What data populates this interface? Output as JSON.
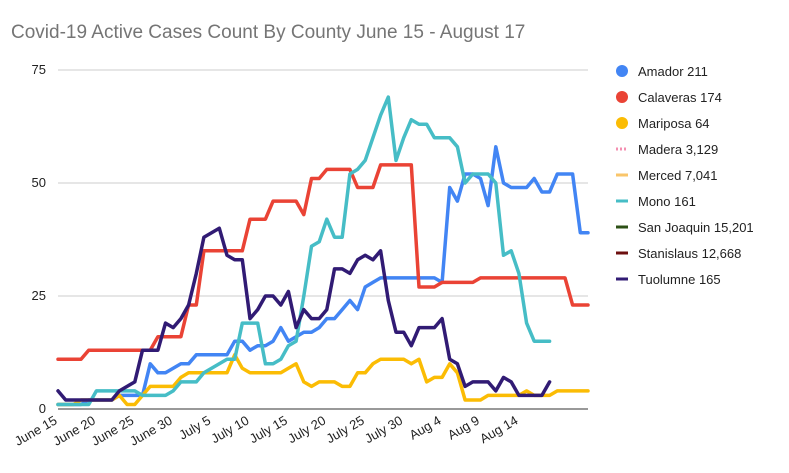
{
  "chart_data": {
    "type": "line",
    "title": "Covid-19 Active Cases Count By County June 15 - August 17",
    "xlabel": "",
    "ylabel": "",
    "ylim": [
      0,
      75
    ],
    "yticks": [
      0,
      25,
      50,
      75
    ],
    "x_tick_labels": [
      "June 15",
      "June 20",
      "June 25",
      "June 30",
      "July 5",
      "July 10",
      "July 15",
      "July 20",
      "July 25",
      "July 30",
      "Aug 4",
      "Aug 9",
      "Aug 14"
    ],
    "grid": "horizontal",
    "legend_position": "right",
    "series": [
      {
        "name": "Amador 211",
        "color": "#4285f4",
        "dash": "solid",
        "values": [
          1,
          1,
          1,
          1,
          2,
          2,
          2,
          2,
          3,
          3,
          3,
          3,
          10,
          8,
          8,
          9,
          10,
          10,
          12,
          12,
          12,
          12,
          12,
          15,
          15,
          13,
          14,
          14,
          15,
          18,
          15,
          16,
          17,
          17,
          18,
          20,
          20,
          22,
          24,
          22,
          27,
          28,
          29,
          29,
          29,
          29,
          29,
          29,
          29,
          29,
          28,
          49,
          46,
          52,
          52,
          51,
          45,
          58,
          50,
          49,
          49,
          49,
          51,
          48,
          48,
          52,
          52,
          52,
          39,
          39
        ]
      },
      {
        "name": "Calaveras 174",
        "color": "#ea4335",
        "dash": "solid",
        "values": [
          11,
          11,
          11,
          11,
          13,
          13,
          13,
          13,
          13,
          13,
          13,
          13,
          13,
          16,
          16,
          16,
          16,
          23,
          23,
          35,
          35,
          35,
          35,
          35,
          35,
          42,
          42,
          42,
          46,
          46,
          46,
          46,
          43,
          51,
          51,
          53,
          53,
          53,
          53,
          49,
          49,
          49,
          54,
          54,
          54,
          54,
          54,
          27,
          27,
          27,
          28,
          28,
          28,
          28,
          28,
          29,
          29,
          29,
          29,
          29,
          29,
          29,
          29,
          29,
          29,
          29,
          29,
          23,
          23,
          23
        ]
      },
      {
        "name": "Mariposa 64",
        "color": "#fbbc04",
        "dash": "solid",
        "values": [
          1,
          1,
          1,
          2,
          2,
          2,
          2,
          2,
          3,
          1,
          1,
          3,
          5,
          5,
          5,
          5,
          7,
          8,
          8,
          8,
          8,
          8,
          8,
          12,
          9,
          8,
          8,
          8,
          8,
          8,
          9,
          10,
          6,
          5,
          6,
          6,
          6,
          5,
          5,
          8,
          8,
          10,
          11,
          11,
          11,
          11,
          10,
          11,
          6,
          7,
          7,
          10,
          8,
          2,
          2,
          2,
          3,
          3,
          3,
          3,
          3,
          4,
          3,
          3,
          3,
          4,
          4,
          4,
          4,
          4
        ]
      },
      {
        "name": "Madera 3,129",
        "color": "#f48fb1",
        "dash": "dotted",
        "values": []
      },
      {
        "name": "Merced 7,041",
        "color": "#f9c56a",
        "dash": "solid",
        "values": []
      },
      {
        "name": "Mono 161",
        "color": "#46bdc6",
        "dash": "solid",
        "values": [
          1,
          1,
          1,
          1,
          1,
          4,
          4,
          4,
          4,
          4,
          4,
          3,
          3,
          3,
          3,
          4,
          6,
          6,
          6,
          8,
          9,
          10,
          11,
          11,
          19,
          19,
          19,
          10,
          10,
          11,
          14,
          15,
          25,
          36,
          37,
          42,
          38,
          38,
          52,
          53,
          55,
          60,
          65,
          69,
          55,
          60,
          64,
          63,
          63,
          60,
          60,
          60,
          58,
          50,
          52,
          52,
          52,
          50,
          34,
          35,
          30,
          19,
          15,
          15,
          15
        ]
      },
      {
        "name": "San Joaquin 15,201",
        "color": "#2d5016",
        "dash": "solid",
        "values": []
      },
      {
        "name": "Stanislaus 12,668",
        "color": "#6d0f0f",
        "dash": "solid",
        "values": []
      },
      {
        "name": "Tuolumne 165",
        "color": "#311b74",
        "dash": "solid",
        "values": [
          4,
          2,
          2,
          2,
          2,
          2,
          2,
          2,
          4,
          5,
          6,
          13,
          13,
          13,
          19,
          18,
          20,
          23,
          30,
          38,
          39,
          40,
          34,
          33,
          33,
          20,
          22,
          25,
          25,
          23,
          26,
          18,
          22,
          20,
          20,
          22,
          31,
          31,
          30,
          33,
          34,
          33,
          35,
          24,
          17,
          17,
          14,
          18,
          18,
          18,
          20,
          11,
          10,
          5,
          6,
          6,
          6,
          4,
          7,
          6,
          3,
          3,
          3,
          3,
          6
        ]
      }
    ]
  }
}
